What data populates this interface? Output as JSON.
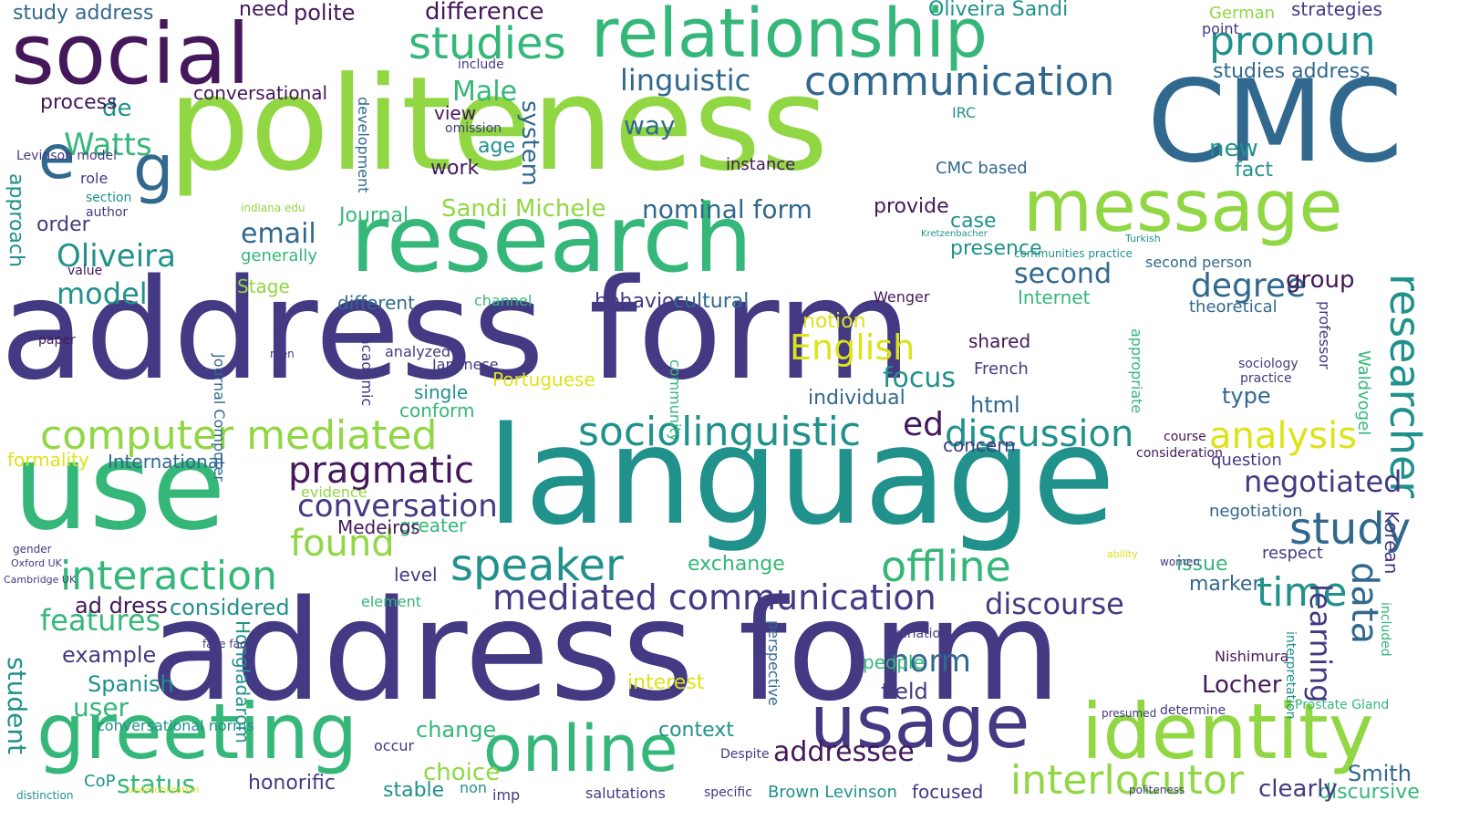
{
  "palette": {
    "purple": "#44185a",
    "indigo": "#433a83",
    "blue": "#31688e",
    "teal": "#21918c",
    "green": "#35b779",
    "lime": "#90d743",
    "yellow": "#dde318"
  },
  "words": [
    {
      "text": "address form",
      "color": "indigo"
    },
    {
      "text": "address form",
      "color": "indigo"
    },
    {
      "text": "politeness",
      "color": "lime"
    },
    {
      "text": "language",
      "color": "teal"
    },
    {
      "text": "use",
      "color": "green"
    },
    {
      "text": "CMC",
      "color": "blue"
    },
    {
      "text": "research",
      "color": "green"
    },
    {
      "text": "social",
      "color": "purple"
    },
    {
      "text": "relationship",
      "color": "green"
    },
    {
      "text": "message",
      "color": "lime"
    },
    {
      "text": "greeting",
      "color": "green"
    },
    {
      "text": "identity",
      "color": "lime"
    },
    {
      "text": "online",
      "color": "green"
    },
    {
      "text": "usage",
      "color": "indigo"
    },
    {
      "text": "computer mediated",
      "color": "lime"
    },
    {
      "text": "sociolinguistic",
      "color": "teal"
    },
    {
      "text": "communication",
      "color": "blue"
    },
    {
      "text": "mediated communication",
      "color": "indigo"
    },
    {
      "text": "interlocutor",
      "color": "lime"
    },
    {
      "text": "pragmatic",
      "color": "purple"
    },
    {
      "text": "speaker",
      "color": "teal"
    },
    {
      "text": "discussion",
      "color": "teal"
    },
    {
      "text": "interaction",
      "color": "green"
    },
    {
      "text": "analysis",
      "color": "yellow"
    },
    {
      "text": "studies",
      "color": "green"
    },
    {
      "text": "pronoun",
      "color": "teal"
    },
    {
      "text": "study",
      "color": "blue"
    },
    {
      "text": "offline",
      "color": "green"
    },
    {
      "text": "conversation",
      "color": "indigo"
    },
    {
      "text": "researcher",
      "color": "teal"
    },
    {
      "text": "linguistic",
      "color": "blue"
    },
    {
      "text": "English",
      "color": "yellow"
    },
    {
      "text": "found",
      "color": "lime"
    },
    {
      "text": "discourse",
      "color": "indigo"
    },
    {
      "text": "negotiated",
      "color": "indigo"
    },
    {
      "text": "time",
      "color": "teal"
    },
    {
      "text": "learning",
      "color": "indigo"
    },
    {
      "text": "data",
      "color": "blue"
    },
    {
      "text": "norm",
      "color": "blue"
    },
    {
      "text": "nominal form",
      "color": "blue"
    },
    {
      "text": "degree",
      "color": "blue"
    },
    {
      "text": "Watts",
      "color": "green"
    },
    {
      "text": "Oliveira",
      "color": "teal"
    },
    {
      "text": "email",
      "color": "blue"
    },
    {
      "text": "model",
      "color": "teal"
    },
    {
      "text": "Male",
      "color": "green"
    },
    {
      "text": "second",
      "color": "blue"
    },
    {
      "text": "focus",
      "color": "teal"
    },
    {
      "text": "difference",
      "color": "purple"
    },
    {
      "text": "features",
      "color": "green"
    },
    {
      "text": "considered",
      "color": "teal"
    },
    {
      "text": "Sandi Michele",
      "color": "lime"
    },
    {
      "text": "addressee",
      "color": "purple"
    },
    {
      "text": "greater",
      "color": "green"
    },
    {
      "text": "e",
      "color": "blue"
    },
    {
      "text": "g",
      "color": "blue"
    },
    {
      "text": "de",
      "color": "teal"
    },
    {
      "text": "ed",
      "color": "purple"
    },
    {
      "text": "context",
      "color": "teal"
    },
    {
      "text": "change",
      "color": "green"
    },
    {
      "text": "user",
      "color": "green"
    },
    {
      "text": "student",
      "color": "teal"
    },
    {
      "text": "status",
      "color": "green"
    },
    {
      "text": "stable",
      "color": "teal"
    },
    {
      "text": "choice",
      "color": "lime"
    },
    {
      "text": "honorific",
      "color": "indigo"
    },
    {
      "text": "Spanish",
      "color": "teal"
    },
    {
      "text": "example",
      "color": "indigo"
    },
    {
      "text": "level",
      "color": "indigo"
    },
    {
      "text": "people",
      "color": "green"
    },
    {
      "text": "field",
      "color": "indigo"
    },
    {
      "text": "interest",
      "color": "yellow"
    },
    {
      "text": "Locher",
      "color": "purple"
    },
    {
      "text": "Smith",
      "color": "blue"
    },
    {
      "text": "discursive",
      "color": "green"
    },
    {
      "text": "clearly",
      "color": "indigo"
    },
    {
      "text": "focused",
      "color": "indigo"
    },
    {
      "text": "Brown Levinson",
      "color": "teal"
    },
    {
      "text": "group",
      "color": "purple"
    },
    {
      "text": "type",
      "color": "blue"
    },
    {
      "text": "question",
      "color": "indigo"
    },
    {
      "text": "respect",
      "color": "indigo"
    },
    {
      "text": "marker",
      "color": "blue"
    },
    {
      "text": "issue",
      "color": "green"
    },
    {
      "text": "negotiation",
      "color": "blue"
    },
    {
      "text": "individual",
      "color": "blue"
    },
    {
      "text": "notion",
      "color": "yellow"
    },
    {
      "text": "exchange",
      "color": "green"
    },
    {
      "text": "concern",
      "color": "indigo"
    },
    {
      "text": "html",
      "color": "blue"
    },
    {
      "text": "shared",
      "color": "purple"
    },
    {
      "text": "French",
      "color": "indigo"
    },
    {
      "text": "presence",
      "color": "teal"
    },
    {
      "text": "case",
      "color": "teal"
    },
    {
      "text": "provide",
      "color": "purple"
    },
    {
      "text": "system",
      "color": "blue"
    },
    {
      "text": "age",
      "color": "teal"
    },
    {
      "text": "work",
      "color": "purple"
    },
    {
      "text": "view",
      "color": "purple"
    },
    {
      "text": "way",
      "color": "blue"
    },
    {
      "text": "process",
      "color": "purple"
    },
    {
      "text": "conversational",
      "color": "purple"
    },
    {
      "text": "study address",
      "color": "blue"
    },
    {
      "text": "polite",
      "color": "purple"
    },
    {
      "text": "need",
      "color": "purple"
    },
    {
      "text": "Oliveira Sandi",
      "color": "teal"
    },
    {
      "text": "strategies",
      "color": "indigo"
    },
    {
      "text": "studies address",
      "color": "blue"
    },
    {
      "text": "new",
      "color": "teal"
    },
    {
      "text": "fact",
      "color": "teal"
    },
    {
      "text": "CMC based",
      "color": "blue"
    },
    {
      "text": "instance",
      "color": "purple"
    },
    {
      "text": "Journal",
      "color": "green"
    },
    {
      "text": "different",
      "color": "blue"
    },
    {
      "text": "behavior",
      "color": "indigo"
    },
    {
      "text": "cultural",
      "color": "blue"
    },
    {
      "text": "Portuguese",
      "color": "yellow"
    },
    {
      "text": "Japanese",
      "color": "indigo"
    },
    {
      "text": "single",
      "color": "teal"
    },
    {
      "text": "conform",
      "color": "green"
    },
    {
      "text": "analyzed",
      "color": "indigo"
    },
    {
      "text": "academic",
      "color": "indigo"
    },
    {
      "text": "International",
      "color": "blue"
    },
    {
      "text": "formality",
      "color": "yellow"
    },
    {
      "text": "Medeiros",
      "color": "purple"
    },
    {
      "text": "ad dress",
      "color": "purple"
    },
    {
      "text": "conversational norms",
      "color": "teal"
    },
    {
      "text": "Hongladarom",
      "color": "teal"
    },
    {
      "text": "CoP",
      "color": "teal"
    },
    {
      "text": "Internet",
      "color": "green"
    },
    {
      "text": "second person",
      "color": "blue"
    },
    {
      "text": "theoretical",
      "color": "blue"
    },
    {
      "text": "professor",
      "color": "indigo"
    },
    {
      "text": "Waldvogel",
      "color": "green"
    },
    {
      "text": "sociology",
      "color": "indigo"
    },
    {
      "text": "practice",
      "color": "indigo"
    },
    {
      "text": "course",
      "color": "purple"
    },
    {
      "text": "consideration",
      "color": "purple"
    },
    {
      "text": "Nishimura",
      "color": "purple"
    },
    {
      "text": "women",
      "color": "indigo"
    },
    {
      "text": "German",
      "color": "lime"
    },
    {
      "text": "point",
      "color": "indigo"
    },
    {
      "text": "include",
      "color": "indigo"
    },
    {
      "text": "development",
      "color": "blue"
    },
    {
      "text": "generally",
      "color": "green"
    },
    {
      "text": "Stage",
      "color": "lime"
    },
    {
      "text": "approach",
      "color": "teal"
    },
    {
      "text": "order",
      "color": "indigo"
    },
    {
      "text": "value",
      "color": "purple"
    },
    {
      "text": "channel",
      "color": "green"
    },
    {
      "text": "Wenger",
      "color": "purple"
    },
    {
      "text": "element",
      "color": "green"
    },
    {
      "text": "evidence",
      "color": "lime"
    },
    {
      "text": "occur",
      "color": "indigo"
    },
    {
      "text": "variation",
      "color": "indigo"
    },
    {
      "text": "Korean",
      "color": "indigo"
    },
    {
      "text": "appropriate",
      "color": "green"
    },
    {
      "text": "community",
      "color": "green"
    },
    {
      "text": "perspective",
      "color": "blue"
    },
    {
      "text": "interpretation",
      "color": "teal"
    },
    {
      "text": "included",
      "color": "green"
    },
    {
      "text": "Journal Computer",
      "color": "blue"
    },
    {
      "text": "role",
      "color": "indigo"
    },
    {
      "text": "section",
      "color": "teal"
    },
    {
      "text": "author",
      "color": "indigo"
    },
    {
      "text": "paper",
      "color": "purple"
    },
    {
      "text": "men",
      "color": "indigo"
    },
    {
      "text": "Levinson model",
      "color": "indigo"
    },
    {
      "text": "omission",
      "color": "indigo"
    },
    {
      "text": "IRC",
      "color": "teal"
    },
    {
      "text": "salutations",
      "color": "indigo"
    },
    {
      "text": "imp",
      "color": "indigo"
    },
    {
      "text": "non",
      "color": "teal"
    },
    {
      "text": "Despite",
      "color": "indigo"
    },
    {
      "text": "indiana edu",
      "color": "lime"
    },
    {
      "text": "communities practice",
      "color": "teal"
    },
    {
      "text": "Kretzenbacher",
      "color": "teal"
    },
    {
      "text": "Turkish",
      "color": "teal"
    },
    {
      "text": "politeness",
      "color": "indigo"
    },
    {
      "text": "underutilization",
      "color": "yellow"
    },
    {
      "text": "ability",
      "color": "yellow"
    },
    {
      "text": "Cambridge UK",
      "color": "indigo"
    },
    {
      "text": "Oxford UK",
      "color": "indigo"
    },
    {
      "text": "gender",
      "color": "indigo"
    },
    {
      "text": "specific",
      "color": "indigo"
    },
    {
      "text": "determine",
      "color": "indigo"
    },
    {
      "text": "presumed",
      "color": "indigo"
    },
    {
      "text": "Prostate Gland",
      "color": "green"
    },
    {
      "text": "face face",
      "color": "indigo"
    },
    {
      "text": "distinction",
      "color": "teal"
    }
  ]
}
